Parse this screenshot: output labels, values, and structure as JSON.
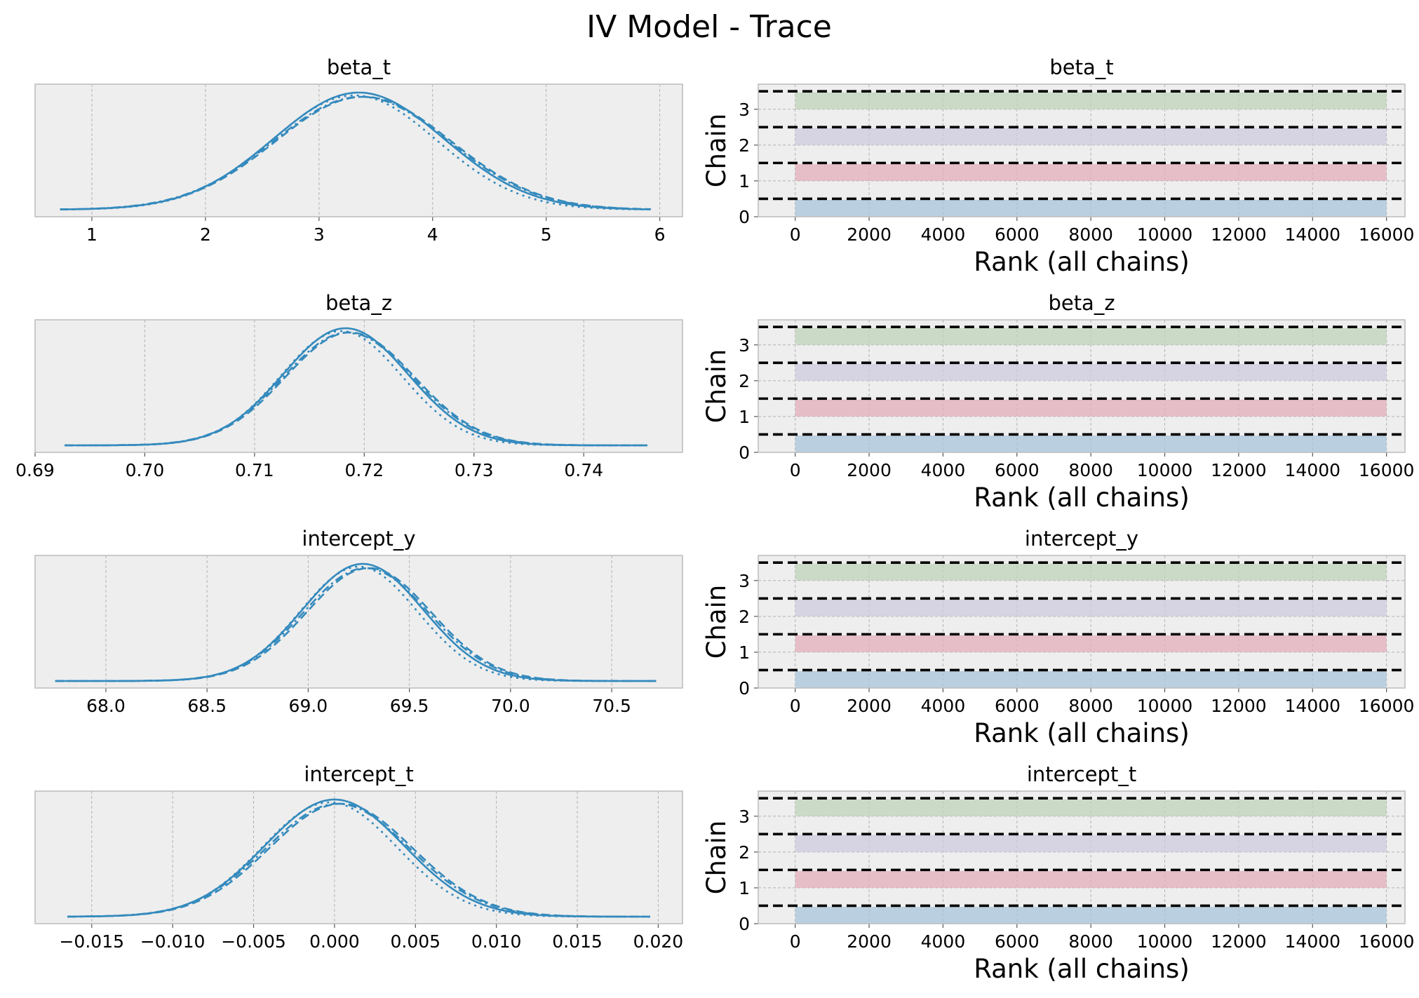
{
  "chart_data": {
    "title": "IV Model - Trace",
    "type": "line",
    "density_line_styles": [
      "solid",
      "dashed",
      "dotted",
      "dashdot"
    ],
    "rank_bar_colors": [
      "#A8C4DA",
      "#E3AEBB",
      "#CDCADF",
      "#BFD3B9"
    ],
    "density_color": "#348ABD",
    "grid": true,
    "rows": [
      {
        "kde": {
          "title": "beta_t",
          "type": "line",
          "xlim": [
            0.5,
            6.2
          ],
          "xticks": [
            1,
            2,
            3,
            4,
            5,
            6
          ],
          "xtick_labels": [
            "1",
            "2",
            "3",
            "4",
            "5",
            "6"
          ],
          "support": [
            0.72,
            5.92
          ],
          "mode": 3.35,
          "sd": 0.75,
          "chain_offsets": [
            0.0,
            0.04,
            -0.04,
            0.02
          ]
        },
        "rank": {
          "title": "beta_t",
          "type": "bar",
          "xlabel": "Rank (all chains)",
          "ylabel": "Chain",
          "xlim": [
            -1000,
            16500
          ],
          "ylim": [
            0,
            3.7
          ],
          "xticks": [
            0,
            2000,
            4000,
            6000,
            8000,
            10000,
            12000,
            14000,
            16000
          ],
          "xtick_labels": [
            "0",
            "2000",
            "4000",
            "6000",
            "8000",
            "10000",
            "12000",
            "14000",
            "16000"
          ],
          "yticks": [
            0,
            1,
            2,
            3
          ],
          "ytick_labels": [
            "0",
            "1",
            "2",
            "3"
          ],
          "chains": [
            0,
            1,
            2,
            3
          ],
          "rank_range": [
            0,
            16000
          ],
          "reference_lines": [
            0.5,
            1.5,
            2.5,
            3.5
          ]
        }
      },
      {
        "kde": {
          "title": "beta_z",
          "type": "line",
          "xlim": [
            0.69,
            0.749
          ],
          "xticks": [
            0.69,
            0.7,
            0.71,
            0.72,
            0.73,
            0.74
          ],
          "xtick_labels": [
            "0.69",
            "0.70",
            "0.71",
            "0.72",
            "0.73",
            "0.74"
          ],
          "support": [
            0.6927,
            0.7458
          ],
          "mode": 0.7183,
          "sd": 0.0057,
          "chain_offsets": [
            0.0,
            0.0004,
            -0.0004,
            0.0002
          ]
        },
        "rank": {
          "title": "beta_z",
          "type": "bar",
          "xlabel": "Rank (all chains)",
          "ylabel": "Chain",
          "xlim": [
            -1000,
            16500
          ],
          "ylim": [
            0,
            3.7
          ],
          "xticks": [
            0,
            2000,
            4000,
            6000,
            8000,
            10000,
            12000,
            14000,
            16000
          ],
          "xtick_labels": [
            "0",
            "2000",
            "4000",
            "6000",
            "8000",
            "10000",
            "12000",
            "14000",
            "16000"
          ],
          "yticks": [
            0,
            1,
            2,
            3
          ],
          "ytick_labels": [
            "0",
            "1",
            "2",
            "3"
          ],
          "chains": [
            0,
            1,
            2,
            3
          ],
          "rank_range": [
            0,
            16000
          ],
          "reference_lines": [
            0.5,
            1.5,
            2.5,
            3.5
          ]
        }
      },
      {
        "kde": {
          "title": "intercept_y",
          "type": "line",
          "xlim": [
            67.65,
            70.85
          ],
          "xticks": [
            68.0,
            68.5,
            69.0,
            69.5,
            70.0,
            70.5
          ],
          "xtick_labels": [
            "68.0",
            "68.5",
            "69.0",
            "69.5",
            "70.0",
            "70.5"
          ],
          "support": [
            67.75,
            70.72
          ],
          "mode": 69.27,
          "sd": 0.3,
          "chain_offsets": [
            0.0,
            0.03,
            -0.02,
            0.015
          ]
        },
        "rank": {
          "title": "intercept_y",
          "type": "bar",
          "xlabel": "Rank (all chains)",
          "ylabel": "Chain",
          "xlim": [
            -1000,
            16500
          ],
          "ylim": [
            0,
            3.7
          ],
          "xticks": [
            0,
            2000,
            4000,
            6000,
            8000,
            10000,
            12000,
            14000,
            16000
          ],
          "xtick_labels": [
            "0",
            "2000",
            "4000",
            "6000",
            "8000",
            "10000",
            "12000",
            "14000",
            "16000"
          ],
          "yticks": [
            0,
            1,
            2,
            3
          ],
          "ytick_labels": [
            "0",
            "1",
            "2",
            "3"
          ],
          "chains": [
            0,
            1,
            2,
            3
          ],
          "rank_range": [
            0,
            16000
          ],
          "reference_lines": [
            0.5,
            1.5,
            2.5,
            3.5
          ]
        }
      },
      {
        "kde": {
          "title": "intercept_t",
          "type": "line",
          "xlim": [
            -0.0185,
            0.0215
          ],
          "xticks": [
            -0.015,
            -0.01,
            -0.005,
            0.0,
            0.005,
            0.01,
            0.015,
            0.02
          ],
          "xtick_labels": [
            "−0.015",
            "−0.010",
            "−0.005",
            "0.000",
            "0.005",
            "0.010",
            "0.015",
            "0.020"
          ],
          "support": [
            -0.0165,
            0.0195
          ],
          "mode": 0.0,
          "sd": 0.0043,
          "chain_offsets": [
            0.0,
            0.0004,
            -0.0003,
            0.0002
          ]
        },
        "rank": {
          "title": "intercept_t",
          "type": "bar",
          "xlabel": "Rank (all chains)",
          "ylabel": "Chain",
          "xlim": [
            -1000,
            16500
          ],
          "ylim": [
            0,
            3.7
          ],
          "xticks": [
            0,
            2000,
            4000,
            6000,
            8000,
            10000,
            12000,
            14000,
            16000
          ],
          "xtick_labels": [
            "0",
            "2000",
            "4000",
            "6000",
            "8000",
            "10000",
            "12000",
            "14000",
            "16000"
          ],
          "yticks": [
            0,
            1,
            2,
            3
          ],
          "ytick_labels": [
            "0",
            "1",
            "2",
            "3"
          ],
          "chains": [
            0,
            1,
            2,
            3
          ],
          "rank_range": [
            0,
            16000
          ],
          "reference_lines": [
            0.5,
            1.5,
            2.5,
            3.5
          ]
        }
      }
    ]
  }
}
